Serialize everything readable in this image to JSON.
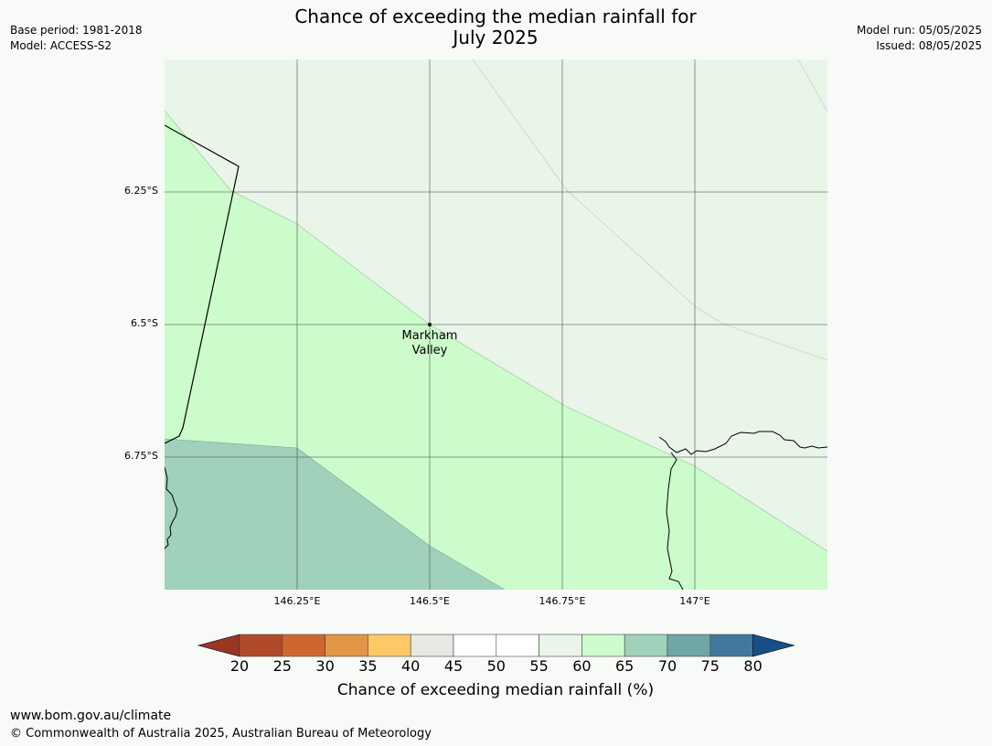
{
  "title_line1": "Chance of exceeding the median rainfall for",
  "title_line2": "July 2025",
  "meta_left": {
    "base_period": "Base period: 1981-2018",
    "model": "Model: ACCESS-S2"
  },
  "meta_right": {
    "model_run": "Model run: 05/05/2025",
    "issued": "Issued: 08/05/2025"
  },
  "map": {
    "lat_labels": [
      "6.25°S",
      "6.5°S",
      "6.75°S"
    ],
    "lon_labels": [
      "146.25°E",
      "146.5°E",
      "146.75°E",
      "147°E"
    ],
    "place": {
      "line1": "Markham",
      "line2": "Valley"
    },
    "region_colors": {
      "band_55_60": "#eaf5ea",
      "band_60_65": "#ccfccc",
      "band_65_70": "#9fd1bb"
    }
  },
  "colorbar": {
    "ticks": [
      "20",
      "25",
      "30",
      "35",
      "40",
      "45",
      "50",
      "55",
      "60",
      "65",
      "70",
      "75",
      "80"
    ],
    "colors": [
      "#b24a29",
      "#d0662f",
      "#e29645",
      "#fdc966",
      "#e9e7e3",
      "#ffffff",
      "#ffffff",
      "#eaf5ea",
      "#ccfccc",
      "#9fd1bb",
      "#6fa6a6",
      "#41789b"
    ],
    "under_color": "#9a3624",
    "over_color": "#1a4e88",
    "label": "Chance of exceeding median rainfall (%)"
  },
  "footer": {
    "url": "www.bom.gov.au/climate",
    "copyright": "© Commonwealth of Australia 2025, Australian Bureau of Meteorology"
  }
}
